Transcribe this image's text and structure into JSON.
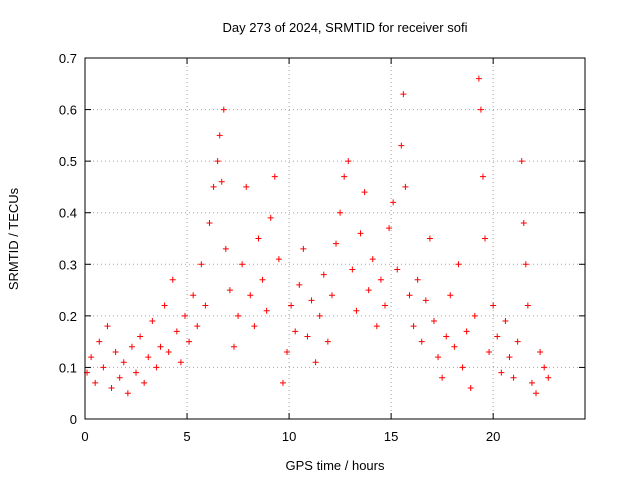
{
  "chart_data": {
    "type": "scatter",
    "title": "Day 273 of 2024, SRMTID for receiver sofi",
    "xlabel": "GPS time / hours",
    "ylabel": "SRMTID / TECUs",
    "xlim": [
      0,
      24.5
    ],
    "ylim": [
      0,
      0.7
    ],
    "x_ticks": [
      0,
      5,
      10,
      15,
      20
    ],
    "x_tick_labels": [
      "0",
      "5",
      "10",
      "15",
      "20"
    ],
    "y_ticks": [
      0,
      0.1,
      0.2,
      0.3,
      0.4,
      0.5,
      0.6,
      0.7
    ],
    "y_tick_labels": [
      "0",
      "0.1",
      "0.2",
      "0.3",
      "0.4",
      "0.5",
      "0.6",
      "0.7"
    ],
    "grid": true,
    "marker": "plus",
    "color": "#ff0000",
    "series": [
      {
        "name": "SRMTID",
        "sampled": true,
        "points": [
          [
            0.1,
            0.09
          ],
          [
            0.3,
            0.12
          ],
          [
            0.5,
            0.07
          ],
          [
            0.7,
            0.15
          ],
          [
            0.9,
            0.1
          ],
          [
            1.1,
            0.18
          ],
          [
            1.3,
            0.06
          ],
          [
            1.5,
            0.13
          ],
          [
            1.7,
            0.08
          ],
          [
            1.9,
            0.11
          ],
          [
            2.1,
            0.05
          ],
          [
            2.3,
            0.14
          ],
          [
            2.5,
            0.09
          ],
          [
            2.7,
            0.16
          ],
          [
            2.9,
            0.07
          ],
          [
            3.1,
            0.12
          ],
          [
            3.3,
            0.19
          ],
          [
            3.5,
            0.1
          ],
          [
            3.7,
            0.14
          ],
          [
            3.9,
            0.22
          ],
          [
            4.1,
            0.13
          ],
          [
            4.3,
            0.27
          ],
          [
            4.5,
            0.17
          ],
          [
            4.7,
            0.11
          ],
          [
            4.9,
            0.2
          ],
          [
            5.1,
            0.15
          ],
          [
            5.3,
            0.24
          ],
          [
            5.5,
            0.18
          ],
          [
            5.7,
            0.3
          ],
          [
            5.9,
            0.22
          ],
          [
            6.1,
            0.38
          ],
          [
            6.3,
            0.45
          ],
          [
            6.5,
            0.5
          ],
          [
            6.6,
            0.55
          ],
          [
            6.7,
            0.46
          ],
          [
            6.8,
            0.6
          ],
          [
            6.9,
            0.33
          ],
          [
            7.1,
            0.25
          ],
          [
            7.3,
            0.14
          ],
          [
            7.5,
            0.2
          ],
          [
            7.7,
            0.3
          ],
          [
            7.9,
            0.45
          ],
          [
            8.1,
            0.24
          ],
          [
            8.3,
            0.18
          ],
          [
            8.5,
            0.35
          ],
          [
            8.7,
            0.27
          ],
          [
            8.9,
            0.21
          ],
          [
            9.1,
            0.39
          ],
          [
            9.3,
            0.47
          ],
          [
            9.5,
            0.31
          ],
          [
            9.7,
            0.07
          ],
          [
            9.9,
            0.13
          ],
          [
            10.1,
            0.22
          ],
          [
            10.3,
            0.17
          ],
          [
            10.5,
            0.26
          ],
          [
            10.7,
            0.33
          ],
          [
            10.9,
            0.16
          ],
          [
            11.1,
            0.23
          ],
          [
            11.3,
            0.11
          ],
          [
            11.5,
            0.2
          ],
          [
            11.7,
            0.28
          ],
          [
            11.9,
            0.15
          ],
          [
            12.1,
            0.24
          ],
          [
            12.3,
            0.34
          ],
          [
            12.5,
            0.4
          ],
          [
            12.7,
            0.47
          ],
          [
            12.9,
            0.5
          ],
          [
            13.1,
            0.29
          ],
          [
            13.3,
            0.21
          ],
          [
            13.5,
            0.36
          ],
          [
            13.7,
            0.44
          ],
          [
            13.9,
            0.25
          ],
          [
            14.1,
            0.31
          ],
          [
            14.3,
            0.18
          ],
          [
            14.5,
            0.27
          ],
          [
            14.7,
            0.22
          ],
          [
            14.9,
            0.37
          ],
          [
            15.1,
            0.42
          ],
          [
            15.3,
            0.29
          ],
          [
            15.5,
            0.53
          ],
          [
            15.6,
            0.63
          ],
          [
            15.7,
            0.45
          ],
          [
            15.9,
            0.24
          ],
          [
            16.1,
            0.18
          ],
          [
            16.3,
            0.27
          ],
          [
            16.5,
            0.15
          ],
          [
            16.7,
            0.23
          ],
          [
            16.9,
            0.35
          ],
          [
            17.1,
            0.19
          ],
          [
            17.3,
            0.12
          ],
          [
            17.5,
            0.08
          ],
          [
            17.7,
            0.16
          ],
          [
            17.9,
            0.24
          ],
          [
            18.1,
            0.14
          ],
          [
            18.3,
            0.3
          ],
          [
            18.5,
            0.1
          ],
          [
            18.7,
            0.17
          ],
          [
            18.9,
            0.06
          ],
          [
            19.1,
            0.2
          ],
          [
            19.3,
            0.66
          ],
          [
            19.4,
            0.6
          ],
          [
            19.5,
            0.47
          ],
          [
            19.6,
            0.35
          ],
          [
            19.8,
            0.13
          ],
          [
            20.0,
            0.22
          ],
          [
            20.2,
            0.16
          ],
          [
            20.4,
            0.09
          ],
          [
            20.6,
            0.19
          ],
          [
            20.8,
            0.12
          ],
          [
            21.0,
            0.08
          ],
          [
            21.2,
            0.15
          ],
          [
            21.4,
            0.5
          ],
          [
            21.5,
            0.38
          ],
          [
            21.6,
            0.3
          ],
          [
            21.7,
            0.22
          ],
          [
            21.9,
            0.07
          ],
          [
            22.1,
            0.05
          ],
          [
            22.3,
            0.13
          ],
          [
            22.5,
            0.1
          ],
          [
            22.7,
            0.08
          ]
        ]
      }
    ]
  }
}
